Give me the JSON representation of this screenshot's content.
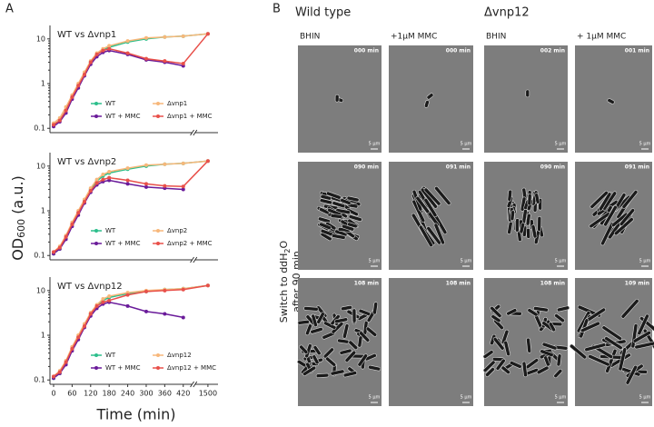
{
  "panel_labels": [
    "A",
    "B"
  ],
  "y_axis_label": {
    "main": "OD",
    "sub": "600",
    "rest": " (a.u.)"
  },
  "x_axis_label": "Time (min)",
  "chart_data": [
    {
      "type": "line",
      "title": "WT vs Δvnp1",
      "log_y": true,
      "x": [
        0,
        20,
        40,
        60,
        80,
        100,
        120,
        140,
        160,
        180,
        240,
        300,
        360,
        420,
        1500
      ],
      "xlim": [
        0,
        1530
      ],
      "x_break": [
        440,
        1470
      ],
      "ylim": [
        0.08,
        20
      ],
      "yticks": [
        0.1,
        1,
        10
      ],
      "series": [
        {
          "name": "WT",
          "color": "#2cbf8c",
          "values": [
            0.12,
            0.15,
            0.25,
            0.5,
            0.9,
            1.6,
            3,
            4.5,
            5.8,
            6.5,
            8.5,
            10,
            11,
            11.5,
            13
          ]
        },
        {
          "name": "WT + MMC",
          "color": "#6a1b9a",
          "values": [
            0.11,
            0.14,
            0.22,
            0.45,
            0.8,
            1.5,
            2.7,
            4,
            5,
            5.5,
            4.5,
            3.4,
            3,
            2.5,
            null
          ]
        },
        {
          "name": "Δvnp1",
          "color": "#f7b77a",
          "values": [
            0.13,
            0.17,
            0.3,
            0.55,
            1,
            1.8,
            3.2,
            4.8,
            6,
            7,
            9,
            10.5,
            11,
            11.5,
            13
          ]
        },
        {
          "name": "Δvnp1 + MMC",
          "color": "#e8504a",
          "values": [
            0.12,
            0.15,
            0.25,
            0.5,
            0.9,
            1.6,
            3,
            4.5,
            5.5,
            6,
            4.8,
            3.6,
            3.2,
            2.8,
            13
          ]
        }
      ]
    },
    {
      "type": "line",
      "title": "WT vs Δvnp2",
      "log_y": true,
      "x": [
        0,
        20,
        40,
        60,
        80,
        100,
        120,
        140,
        160,
        180,
        240,
        300,
        360,
        420,
        1500
      ],
      "xlim": [
        0,
        1530
      ],
      "x_break": [
        440,
        1470
      ],
      "ylim": [
        0.08,
        20
      ],
      "yticks": [
        0.1,
        1,
        10
      ],
      "series": [
        {
          "name": "WT",
          "color": "#2cbf8c",
          "values": [
            0.11,
            0.14,
            0.24,
            0.5,
            0.9,
            1.7,
            3,
            4.6,
            6,
            7,
            8.5,
            10,
            11,
            11.5,
            13
          ]
        },
        {
          "name": "WT + MMC",
          "color": "#6a1b9a",
          "values": [
            0.11,
            0.14,
            0.23,
            0.45,
            0.8,
            1.5,
            2.6,
            3.8,
            4.5,
            4.8,
            4,
            3.4,
            3.2,
            3,
            null
          ]
        },
        {
          "name": "Δvnp2",
          "color": "#f7b77a",
          "values": [
            0.12,
            0.16,
            0.28,
            0.55,
            1,
            1.8,
            3.2,
            5,
            6.5,
            7.5,
            9,
            10.5,
            11,
            11.5,
            13
          ]
        },
        {
          "name": "Δvnp2 + MMC",
          "color": "#e8504a",
          "values": [
            0.12,
            0.15,
            0.26,
            0.5,
            0.9,
            1.6,
            2.8,
            4.2,
            5,
            5.5,
            4.8,
            4,
            3.6,
            3.5,
            13
          ]
        }
      ]
    },
    {
      "type": "line",
      "title": "WT vs Δvnp12",
      "log_y": true,
      "x": [
        0,
        20,
        40,
        60,
        80,
        100,
        120,
        140,
        160,
        180,
        240,
        300,
        360,
        420,
        1500
      ],
      "xlim": [
        0,
        1530
      ],
      "x_break": [
        440,
        1470
      ],
      "ylim": [
        0.08,
        20
      ],
      "yticks": [
        0.1,
        1,
        10
      ],
      "xticks": [
        0,
        60,
        120,
        180,
        240,
        300,
        360,
        420,
        1500
      ],
      "series": [
        {
          "name": "WT",
          "color": "#2cbf8c",
          "values": [
            0.11,
            0.14,
            0.24,
            0.5,
            0.9,
            1.6,
            3,
            4.5,
            6,
            7,
            8.5,
            9.5,
            10.5,
            11,
            13
          ]
        },
        {
          "name": "WT + MMC",
          "color": "#6a1b9a",
          "values": [
            0.11,
            0.14,
            0.22,
            0.45,
            0.8,
            1.5,
            2.7,
            4,
            5,
            5.5,
            4.5,
            3.4,
            3,
            2.5,
            null
          ]
        },
        {
          "name": "Δvnp12",
          "color": "#f7b77a",
          "values": [
            0.12,
            0.16,
            0.27,
            0.55,
            1,
            1.8,
            3.2,
            4.8,
            6.5,
            7.5,
            9,
            10,
            10.5,
            11,
            13
          ]
        },
        {
          "name": "Δvnp12 + MMC",
          "color": "#e8504a",
          "values": [
            0.12,
            0.15,
            0.25,
            0.5,
            0.9,
            1.6,
            3,
            4.5,
            5.5,
            6,
            8,
            9.5,
            10,
            10.5,
            13
          ]
        }
      ]
    }
  ],
  "panel_b": {
    "groups": [
      "Wild type",
      "Δvnp12"
    ],
    "columns": [
      "BHIN",
      "+1μM MMC",
      "BHIN",
      "+ 1μM MMC"
    ],
    "row_label": {
      "line1_main": "Switch to ddH",
      "line1_sub": "2",
      "line1_rest": "O",
      "line2": "after 90 min"
    },
    "scale_bar": "5 μm",
    "timestamps": [
      [
        "000 min",
        "000 min",
        "002 min",
        "001 min"
      ],
      [
        "090 min",
        "091 min",
        "090 min",
        "091 min"
      ],
      [
        "108 min",
        "108 min",
        "108 min",
        "109 min"
      ]
    ]
  }
}
